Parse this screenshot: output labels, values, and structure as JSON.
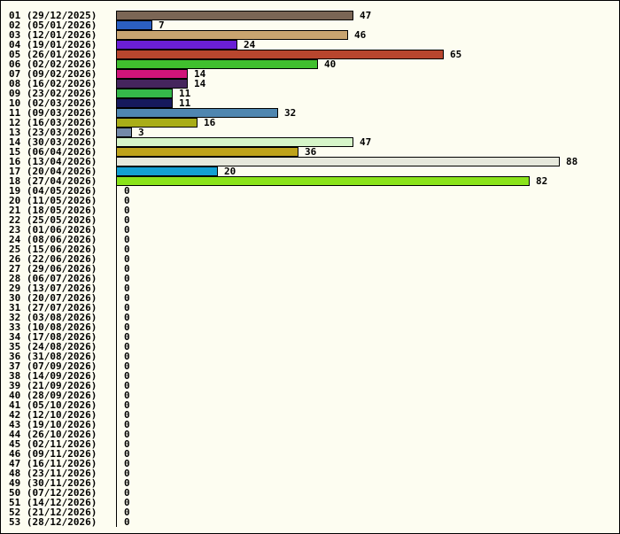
{
  "chart_data": {
    "type": "bar",
    "orientation": "horizontal",
    "title": "",
    "xlabel": "",
    "ylabel": "",
    "grid": false,
    "legend": "none",
    "xlim": [
      0,
      88
    ],
    "categories": [
      "01 (29/12/2025)",
      "02 (05/01/2026)",
      "03 (12/01/2026)",
      "04 (19/01/2026)",
      "05 (26/01/2026)",
      "06 (02/02/2026)",
      "07 (09/02/2026)",
      "08 (16/02/2026)",
      "09 (23/02/2026)",
      "10 (02/03/2026)",
      "11 (09/03/2026)",
      "12 (16/03/2026)",
      "13 (23/03/2026)",
      "14 (30/03/2026)",
      "15 (06/04/2026)",
      "16 (13/04/2026)",
      "17 (20/04/2026)",
      "18 (27/04/2026)",
      "19 (04/05/2026)",
      "20 (11/05/2026)",
      "21 (18/05/2026)",
      "22 (25/05/2026)",
      "23 (01/06/2026)",
      "24 (08/06/2026)",
      "25 (15/06/2026)",
      "26 (22/06/2026)",
      "27 (29/06/2026)",
      "28 (06/07/2026)",
      "29 (13/07/2026)",
      "30 (20/07/2026)",
      "31 (27/07/2026)",
      "32 (03/08/2026)",
      "33 (10/08/2026)",
      "34 (17/08/2026)",
      "35 (24/08/2026)",
      "36 (31/08/2026)",
      "37 (07/09/2026)",
      "38 (14/09/2026)",
      "39 (21/09/2026)",
      "40 (28/09/2026)",
      "41 (05/10/2026)",
      "42 (12/10/2026)",
      "43 (19/10/2026)",
      "44 (26/10/2026)",
      "45 (02/11/2026)",
      "46 (09/11/2026)",
      "47 (16/11/2026)",
      "48 (23/11/2026)",
      "49 (30/11/2026)",
      "50 (07/12/2026)",
      "51 (14/12/2026)",
      "52 (21/12/2026)",
      "53 (28/12/2026)"
    ],
    "values": [
      47,
      7,
      46,
      24,
      65,
      40,
      14,
      14,
      11,
      11,
      32,
      16,
      3,
      47,
      36,
      88,
      20,
      82,
      0,
      0,
      0,
      0,
      0,
      0,
      0,
      0,
      0,
      0,
      0,
      0,
      0,
      0,
      0,
      0,
      0,
      0,
      0,
      0,
      0,
      0,
      0,
      0,
      0,
      0,
      0,
      0,
      0,
      0,
      0,
      0,
      0,
      0,
      0
    ],
    "colors": [
      "#7b6655",
      "#2b5fc1",
      "#c8a470",
      "#6a1fd6",
      "#b8462e",
      "#40bf2e",
      "#d0147a",
      "#45255d",
      "#35b84a",
      "#16195c",
      "#4f86b0",
      "#a9ad18",
      "#7389a8",
      "#d6f5c8",
      "#bea31a",
      "#e6e8dc",
      "#13a0d2",
      "#8ae31a"
    ]
  }
}
